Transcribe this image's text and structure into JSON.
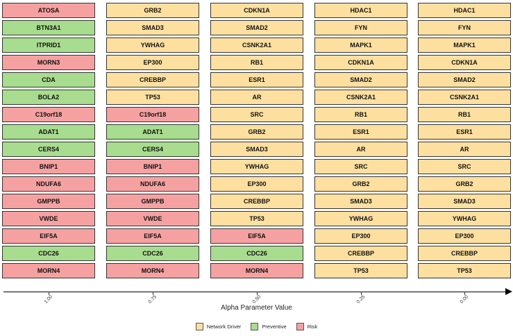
{
  "colors": {
    "Network Driver": "#fde0a0",
    "Preventive": "#a8dc8e",
    "Risk": "#f6a1a1"
  },
  "columns": [
    {
      "alpha": "1.00",
      "genes": [
        {
          "name": "ATOSA",
          "type": "Risk"
        },
        {
          "name": "BTN3A1",
          "type": "Preventive"
        },
        {
          "name": "ITPRID1",
          "type": "Preventive"
        },
        {
          "name": "MORN3",
          "type": "Risk"
        },
        {
          "name": "CDA",
          "type": "Preventive"
        },
        {
          "name": "BOLA2",
          "type": "Preventive"
        },
        {
          "name": "C19orf18",
          "type": "Risk"
        },
        {
          "name": "ADAT1",
          "type": "Preventive"
        },
        {
          "name": "CERS4",
          "type": "Preventive"
        },
        {
          "name": "BNIP1",
          "type": "Risk"
        },
        {
          "name": "NDUFA6",
          "type": "Risk"
        },
        {
          "name": "GMPPB",
          "type": "Risk"
        },
        {
          "name": "VWDE",
          "type": "Risk"
        },
        {
          "name": "EIF5A",
          "type": "Risk"
        },
        {
          "name": "CDC26",
          "type": "Preventive"
        },
        {
          "name": "MORN4",
          "type": "Risk"
        }
      ]
    },
    {
      "alpha": "0.75",
      "genes": [
        {
          "name": "GRB2",
          "type": "Network Driver"
        },
        {
          "name": "SMAD3",
          "type": "Network Driver"
        },
        {
          "name": "YWHAG",
          "type": "Network Driver"
        },
        {
          "name": "EP300",
          "type": "Network Driver"
        },
        {
          "name": "CREBBP",
          "type": "Network Driver"
        },
        {
          "name": "TP53",
          "type": "Network Driver"
        },
        {
          "name": "C19orf18",
          "type": "Risk"
        },
        {
          "name": "ADAT1",
          "type": "Preventive"
        },
        {
          "name": "CERS4",
          "type": "Preventive"
        },
        {
          "name": "BNIP1",
          "type": "Risk"
        },
        {
          "name": "NDUFA6",
          "type": "Risk"
        },
        {
          "name": "GMPPB",
          "type": "Risk"
        },
        {
          "name": "VWDE",
          "type": "Risk"
        },
        {
          "name": "EIF5A",
          "type": "Risk"
        },
        {
          "name": "CDC26",
          "type": "Preventive"
        },
        {
          "name": "MORN4",
          "type": "Risk"
        }
      ]
    },
    {
      "alpha": "0.50",
      "genes": [
        {
          "name": "CDKN1A",
          "type": "Network Driver"
        },
        {
          "name": "SMAD2",
          "type": "Network Driver"
        },
        {
          "name": "CSNK2A1",
          "type": "Network Driver"
        },
        {
          "name": "RB1",
          "type": "Network Driver"
        },
        {
          "name": "ESR1",
          "type": "Network Driver"
        },
        {
          "name": "AR",
          "type": "Network Driver"
        },
        {
          "name": "SRC",
          "type": "Network Driver"
        },
        {
          "name": "GRB2",
          "type": "Network Driver"
        },
        {
          "name": "SMAD3",
          "type": "Network Driver"
        },
        {
          "name": "YWHAG",
          "type": "Network Driver"
        },
        {
          "name": "EP300",
          "type": "Network Driver"
        },
        {
          "name": "CREBBP",
          "type": "Network Driver"
        },
        {
          "name": "TP53",
          "type": "Network Driver"
        },
        {
          "name": "EIF5A",
          "type": "Risk"
        },
        {
          "name": "CDC26",
          "type": "Preventive"
        },
        {
          "name": "MORN4",
          "type": "Risk"
        }
      ]
    },
    {
      "alpha": "0.25",
      "genes": [
        {
          "name": "HDAC1",
          "type": "Network Driver"
        },
        {
          "name": "FYN",
          "type": "Network Driver"
        },
        {
          "name": "MAPK1",
          "type": "Network Driver"
        },
        {
          "name": "CDKN1A",
          "type": "Network Driver"
        },
        {
          "name": "SMAD2",
          "type": "Network Driver"
        },
        {
          "name": "CSNK2A1",
          "type": "Network Driver"
        },
        {
          "name": "RB1",
          "type": "Network Driver"
        },
        {
          "name": "ESR1",
          "type": "Network Driver"
        },
        {
          "name": "AR",
          "type": "Network Driver"
        },
        {
          "name": "SRC",
          "type": "Network Driver"
        },
        {
          "name": "GRB2",
          "type": "Network Driver"
        },
        {
          "name": "SMAD3",
          "type": "Network Driver"
        },
        {
          "name": "YWHAG",
          "type": "Network Driver"
        },
        {
          "name": "EP300",
          "type": "Network Driver"
        },
        {
          "name": "CREBBP",
          "type": "Network Driver"
        },
        {
          "name": "TP53",
          "type": "Network Driver"
        }
      ]
    },
    {
      "alpha": "0.00",
      "genes": [
        {
          "name": "HDAC1",
          "type": "Network Driver"
        },
        {
          "name": "FYN",
          "type": "Network Driver"
        },
        {
          "name": "MAPK1",
          "type": "Network Driver"
        },
        {
          "name": "CDKN1A",
          "type": "Network Driver"
        },
        {
          "name": "SMAD2",
          "type": "Network Driver"
        },
        {
          "name": "CSNK2A1",
          "type": "Network Driver"
        },
        {
          "name": "RB1",
          "type": "Network Driver"
        },
        {
          "name": "ESR1",
          "type": "Network Driver"
        },
        {
          "name": "AR",
          "type": "Network Driver"
        },
        {
          "name": "SRC",
          "type": "Network Driver"
        },
        {
          "name": "GRB2",
          "type": "Network Driver"
        },
        {
          "name": "SMAD3",
          "type": "Network Driver"
        },
        {
          "name": "YWHAG",
          "type": "Network Driver"
        },
        {
          "name": "EP300",
          "type": "Network Driver"
        },
        {
          "name": "CREBBP",
          "type": "Network Driver"
        },
        {
          "name": "TP53",
          "type": "Network Driver"
        }
      ]
    }
  ],
  "axis": {
    "title": "Alpha Parameter Value"
  },
  "legend": [
    {
      "label": "Network Driver",
      "key": "Network Driver"
    },
    {
      "label": "Preventive",
      "key": "Preventive"
    },
    {
      "label": "Risk",
      "key": "Risk"
    }
  ]
}
